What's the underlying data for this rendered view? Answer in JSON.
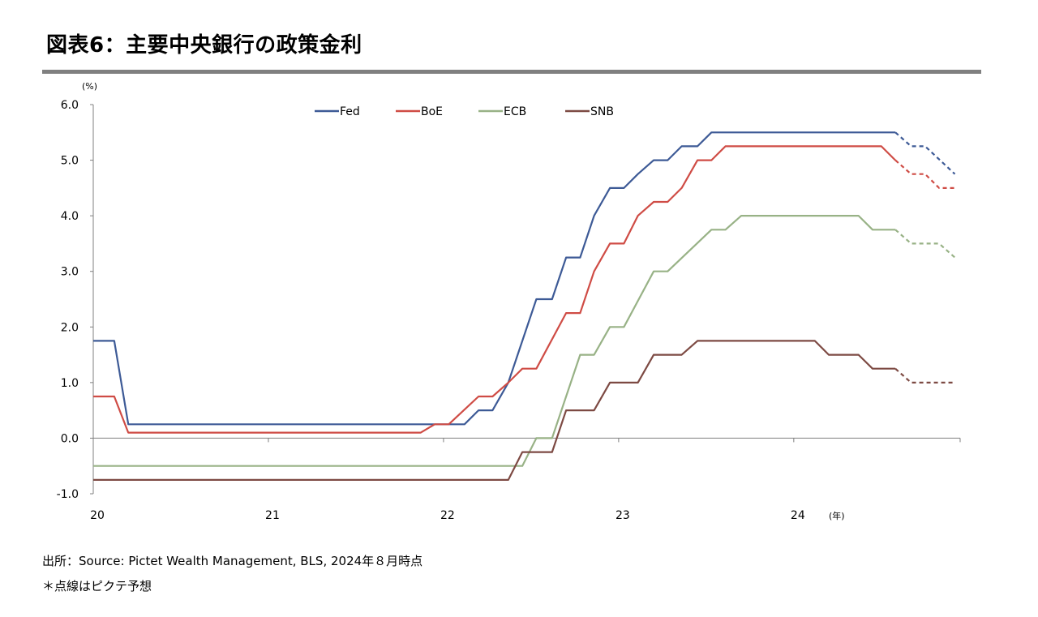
{
  "title": "図表6：主要中央銀行の政策金利",
  "footnote_source": "出所：Source: Pictet Wealth Management, BLS, 2024年８月時点",
  "footnote_dotted": "＊点線はピクテ予想",
  "colors": {
    "Fed": "#3d5a96",
    "BoE": "#cf4c45",
    "ECB": "#98b286",
    "SNB": "#7d4a43",
    "axis": "#808080",
    "title_rule": "#808080"
  },
  "chart_data": {
    "type": "line",
    "title": "",
    "ylabel": "(%)",
    "xlabel": "(年)",
    "ylim": [
      -1.0,
      6.0
    ],
    "xlim": [
      2020.0,
      2024.95
    ],
    "y_ticks": [
      "6.0",
      "5.0",
      "4.0",
      "3.0",
      "2.0",
      "1.0",
      "0.0",
      "-1.0"
    ],
    "x_ticks": [
      {
        "label": "20",
        "x": 2020
      },
      {
        "label": "21",
        "x": 2021
      },
      {
        "label": "22",
        "x": 2022
      },
      {
        "label": "23",
        "x": 2023
      },
      {
        "label": "24",
        "x": 2024
      }
    ],
    "legend_position": "top",
    "forecast_start": 2024.58,
    "series": [
      {
        "name": "Fed",
        "points": [
          [
            2020.0,
            1.75
          ],
          [
            2020.12,
            1.75
          ],
          [
            2020.2,
            0.25
          ],
          [
            2022.12,
            0.25
          ],
          [
            2022.2,
            0.5
          ],
          [
            2022.28,
            0.5
          ],
          [
            2022.37,
            1.0
          ],
          [
            2022.53,
            2.5
          ],
          [
            2022.62,
            2.5
          ],
          [
            2022.7,
            3.25
          ],
          [
            2022.78,
            3.25
          ],
          [
            2022.86,
            4.0
          ],
          [
            2022.95,
            4.5
          ],
          [
            2023.03,
            4.5
          ],
          [
            2023.11,
            4.75
          ],
          [
            2023.2,
            5.0
          ],
          [
            2023.28,
            5.0
          ],
          [
            2023.36,
            5.25
          ],
          [
            2023.45,
            5.25
          ],
          [
            2023.53,
            5.5
          ],
          [
            2024.58,
            5.5
          ],
          [
            2024.67,
            5.25
          ],
          [
            2024.75,
            5.25
          ],
          [
            2024.92,
            4.75
          ]
        ]
      },
      {
        "name": "BoE",
        "points": [
          [
            2020.0,
            0.75
          ],
          [
            2020.12,
            0.75
          ],
          [
            2020.2,
            0.1
          ],
          [
            2021.87,
            0.1
          ],
          [
            2021.95,
            0.25
          ],
          [
            2022.03,
            0.25
          ],
          [
            2022.2,
            0.75
          ],
          [
            2022.28,
            0.75
          ],
          [
            2022.37,
            1.0
          ],
          [
            2022.45,
            1.25
          ],
          [
            2022.53,
            1.25
          ],
          [
            2022.7,
            2.25
          ],
          [
            2022.78,
            2.25
          ],
          [
            2022.86,
            3.0
          ],
          [
            2022.95,
            3.5
          ],
          [
            2023.03,
            3.5
          ],
          [
            2023.11,
            4.0
          ],
          [
            2023.2,
            4.25
          ],
          [
            2023.28,
            4.25
          ],
          [
            2023.36,
            4.5
          ],
          [
            2023.45,
            5.0
          ],
          [
            2023.53,
            5.0
          ],
          [
            2023.61,
            5.25
          ],
          [
            2024.5,
            5.25
          ],
          [
            2024.58,
            5.0
          ],
          [
            2024.67,
            4.75
          ],
          [
            2024.75,
            4.75
          ],
          [
            2024.83,
            4.5
          ],
          [
            2024.92,
            4.5
          ]
        ]
      },
      {
        "name": "ECB",
        "points": [
          [
            2020.0,
            -0.5
          ],
          [
            2022.45,
            -0.5
          ],
          [
            2022.53,
            0.0
          ],
          [
            2022.62,
            0.0
          ],
          [
            2022.78,
            1.5
          ],
          [
            2022.86,
            1.5
          ],
          [
            2022.95,
            2.0
          ],
          [
            2023.03,
            2.0
          ],
          [
            2023.2,
            3.0
          ],
          [
            2023.28,
            3.0
          ],
          [
            2023.53,
            3.75
          ],
          [
            2023.61,
            3.75
          ],
          [
            2023.7,
            4.0
          ],
          [
            2024.37,
            4.0
          ],
          [
            2024.45,
            3.75
          ],
          [
            2024.58,
            3.75
          ],
          [
            2024.67,
            3.5
          ],
          [
            2024.83,
            3.5
          ],
          [
            2024.92,
            3.25
          ]
        ]
      },
      {
        "name": "SNB",
        "points": [
          [
            2020.0,
            -0.75
          ],
          [
            2022.37,
            -0.75
          ],
          [
            2022.45,
            -0.25
          ],
          [
            2022.62,
            -0.25
          ],
          [
            2022.7,
            0.5
          ],
          [
            2022.86,
            0.5
          ],
          [
            2022.95,
            1.0
          ],
          [
            2023.11,
            1.0
          ],
          [
            2023.2,
            1.5
          ],
          [
            2023.36,
            1.5
          ],
          [
            2023.45,
            1.75
          ],
          [
            2024.12,
            1.75
          ],
          [
            2024.2,
            1.5
          ],
          [
            2024.37,
            1.5
          ],
          [
            2024.45,
            1.25
          ],
          [
            2024.58,
            1.25
          ],
          [
            2024.67,
            1.0
          ],
          [
            2024.92,
            1.0
          ]
        ]
      }
    ]
  }
}
